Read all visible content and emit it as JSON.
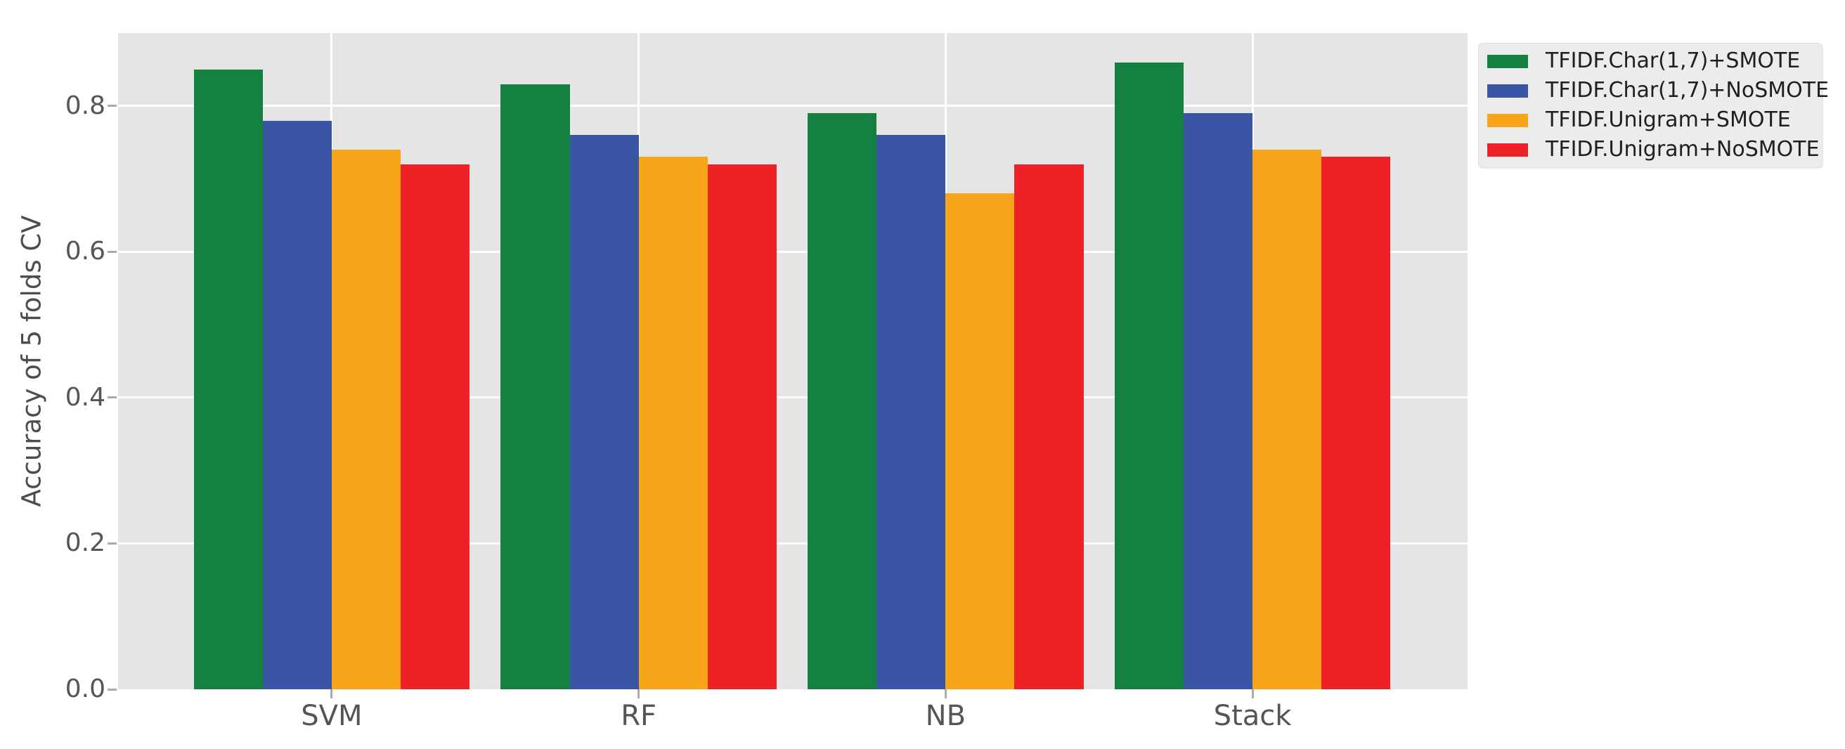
{
  "chart_data": {
    "type": "bar",
    "title": "",
    "xlabel": "",
    "ylabel": "Accuracy of 5 folds CV",
    "categories": [
      "SVM",
      "RF",
      "NB",
      "Stack"
    ],
    "series": [
      {
        "name": "TFIDF.Char(1,7)+SMOTE",
        "color": "#148140",
        "values": [
          0.85,
          0.83,
          0.79,
          0.86
        ]
      },
      {
        "name": "TFIDF.Char(1,7)+NoSMOTE",
        "color": "#3A55A4",
        "values": [
          0.78,
          0.76,
          0.76,
          0.79
        ]
      },
      {
        "name": "TFIDF.Unigram+SMOTE",
        "color": "#F9A51B",
        "values": [
          0.74,
          0.73,
          0.68,
          0.74
        ]
      },
      {
        "name": "TFIDF.Unigram+NoSMOTE",
        "color": "#EE2127",
        "values": [
          0.72,
          0.72,
          0.72,
          0.73
        ]
      }
    ],
    "yticks": [
      0.0,
      0.2,
      0.4,
      0.6,
      0.8
    ],
    "ytick_labels": [
      "0.0",
      "0.2",
      "0.4",
      "0.6",
      "0.8"
    ],
    "ylim": [
      0,
      0.9
    ],
    "grid": true,
    "grid_color": "#FFFFFF",
    "plot_background": "#E5E5E5",
    "legend_position": "outside-upper-right"
  }
}
